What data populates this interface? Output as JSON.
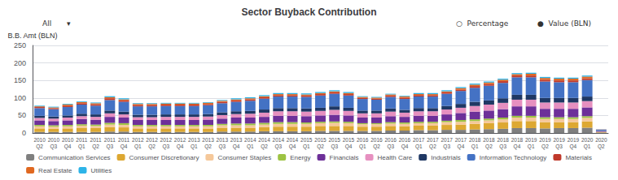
{
  "chart_data": {
    "type": "bar",
    "stacked": true,
    "title": "Sector Buyback Contribution",
    "y_label": "B.B. Amt (BLN)",
    "annotations": [
      "All",
      "▾",
      "○  Percentage",
      "●  Value (BLN)"
    ],
    "categories": [
      "2010\nQ2",
      "2010\nQ3",
      "2010\nQ4",
      "2011\nQ1",
      "2011\nQ2",
      "2011\nQ3",
      "2011\nQ4",
      "2012\nQ1",
      "2012\nQ2",
      "2012\nQ3",
      "2012\nQ4",
      "2013\nQ1",
      "2013\nQ2",
      "2013\nQ3",
      "2013\nQ4",
      "2014\nQ1",
      "2014\nQ2",
      "2014\nQ3",
      "2014\nQ4",
      "2015\nQ1",
      "2015\nQ2",
      "2015\nQ3",
      "2015\nQ4",
      "2016\nQ1",
      "2016\nQ2",
      "2016\nQ3",
      "2016\nQ4",
      "2017\nQ1",
      "2017\nQ2",
      "2017\nQ3",
      "2017\nQ4",
      "2018\nQ1",
      "2018\nQ2",
      "2018\nQ3",
      "2018\nQ4",
      "2019\nQ1",
      "2019\nQ2",
      "2019\nQ3",
      "2019\nQ4",
      "2020\nQ1",
      "2020\nQ2"
    ],
    "series": [
      {
        "name": "Communication Services",
        "color": "#7f7f7f",
        "values": [
          3,
          3,
          3,
          3,
          3,
          4,
          4,
          3,
          3,
          3,
          3,
          3,
          3,
          4,
          4,
          4,
          5,
          5,
          5,
          5,
          6,
          6,
          6,
          6,
          6,
          7,
          7,
          8,
          8,
          9,
          9,
          10,
          11,
          12,
          14,
          14,
          13,
          14,
          14,
          15,
          1
        ]
      },
      {
        "name": "Consumer Discretionary",
        "color": "#dda832",
        "values": [
          10,
          9,
          10,
          12,
          11,
          13,
          12,
          10,
          10,
          10,
          10,
          10,
          10,
          11,
          11,
          11,
          12,
          13,
          13,
          13,
          14,
          14,
          14,
          12,
          12,
          13,
          12,
          13,
          13,
          14,
          15,
          16,
          17,
          18,
          20,
          20,
          18,
          17,
          17,
          18,
          1.2
        ]
      },
      {
        "name": "Consumer Staples",
        "color": "#f5c89a",
        "values": [
          6,
          6,
          6,
          6,
          6,
          7,
          7,
          6,
          6,
          6,
          6,
          6,
          6,
          7,
          7,
          7,
          7,
          8,
          8,
          8,
          8,
          9,
          8,
          7,
          7,
          7,
          7,
          7,
          7,
          8,
          8,
          8,
          8,
          9,
          10,
          10,
          9,
          9,
          9,
          10,
          0.6
        ]
      },
      {
        "name": "Energy",
        "color": "#9dc343",
        "values": [
          4,
          4,
          4,
          4,
          4,
          5,
          5,
          4,
          4,
          4,
          4,
          4,
          4,
          4,
          5,
          5,
          5,
          5,
          5,
          4,
          4,
          4,
          4,
          3,
          3,
          4,
          4,
          4,
          4,
          4,
          5,
          5,
          5,
          5,
          5,
          5,
          5,
          5,
          5,
          5,
          0.4
        ]
      },
      {
        "name": "Financials",
        "color": "#6d3099",
        "values": [
          13,
          12,
          13,
          15,
          14,
          17,
          16,
          14,
          14,
          14,
          14,
          14,
          15,
          15,
          17,
          17,
          17,
          18,
          18,
          18,
          18,
          19,
          18,
          16,
          16,
          17,
          16,
          17,
          17,
          18,
          20,
          22,
          23,
          24,
          27,
          27,
          24,
          24,
          24,
          25,
          1.5
        ]
      },
      {
        "name": "Health Care",
        "color": "#e690c0",
        "values": [
          7,
          7,
          8,
          8,
          8,
          10,
          9,
          8,
          8,
          9,
          9,
          9,
          9,
          10,
          10,
          11,
          12,
          13,
          13,
          13,
          13,
          14,
          13,
          12,
          12,
          13,
          12,
          13,
          13,
          14,
          15,
          16,
          17,
          18,
          19,
          19,
          18,
          18,
          18,
          18,
          1
        ]
      },
      {
        "name": "Industrials",
        "color": "#1f3864",
        "values": [
          6,
          6,
          6,
          7,
          7,
          8,
          8,
          7,
          7,
          7,
          7,
          7,
          7,
          8,
          8,
          8,
          9,
          9,
          9,
          9,
          9,
          10,
          9,
          8,
          8,
          9,
          8,
          9,
          9,
          10,
          11,
          12,
          12,
          13,
          14,
          14,
          13,
          13,
          13,
          13,
          0.8
        ]
      },
      {
        "name": "Information Technology",
        "color": "#4472c4",
        "values": [
          22,
          21,
          24,
          26,
          25,
          30,
          28,
          24,
          24,
          24,
          24,
          24,
          25,
          26,
          27,
          29,
          31,
          33,
          33,
          33,
          35,
          36,
          35,
          33,
          31,
          33,
          31,
          33,
          33,
          35,
          37,
          40,
          42,
          44,
          50,
          50,
          47,
          45,
          45,
          47,
          3
        ]
      },
      {
        "name": "Materials",
        "color": "#c0392b",
        "values": [
          3,
          3,
          4,
          4,
          4,
          5,
          4,
          4,
          4,
          4,
          4,
          4,
          4,
          4,
          4,
          4,
          4,
          4,
          4,
          4,
          4,
          4,
          4,
          3,
          3,
          4,
          4,
          4,
          4,
          4,
          4,
          5,
          5,
          5,
          5,
          5,
          5,
          5,
          5,
          5,
          0.3
        ]
      },
      {
        "name": "Real Estate",
        "color": "#e06820",
        "values": [
          2,
          2,
          3,
          3,
          3,
          3,
          3,
          3,
          3,
          3,
          3,
          3,
          3,
          3,
          3,
          3,
          3,
          3,
          3,
          3,
          3,
          3,
          3,
          3,
          3,
          3,
          3,
          3,
          3,
          3,
          4,
          4,
          4,
          4,
          4,
          5,
          5,
          5,
          5,
          5,
          0.3
        ]
      },
      {
        "name": "Utilities",
        "color": "#2db4e8",
        "values": [
          2,
          2,
          2,
          2,
          2,
          3,
          3,
          2,
          2,
          2,
          2,
          2,
          2,
          2,
          3,
          3,
          3,
          3,
          3,
          3,
          3,
          3,
          3,
          2,
          2,
          2,
          2,
          3,
          3,
          3,
          3,
          3,
          3,
          3,
          3,
          3,
          3,
          3,
          3,
          3,
          0.2
        ]
      }
    ],
    "ylim": [
      0,
      250
    ],
    "yticks": [
      0,
      50,
      100,
      150,
      200,
      250
    ],
    "grid": true,
    "legend": "bottom"
  }
}
